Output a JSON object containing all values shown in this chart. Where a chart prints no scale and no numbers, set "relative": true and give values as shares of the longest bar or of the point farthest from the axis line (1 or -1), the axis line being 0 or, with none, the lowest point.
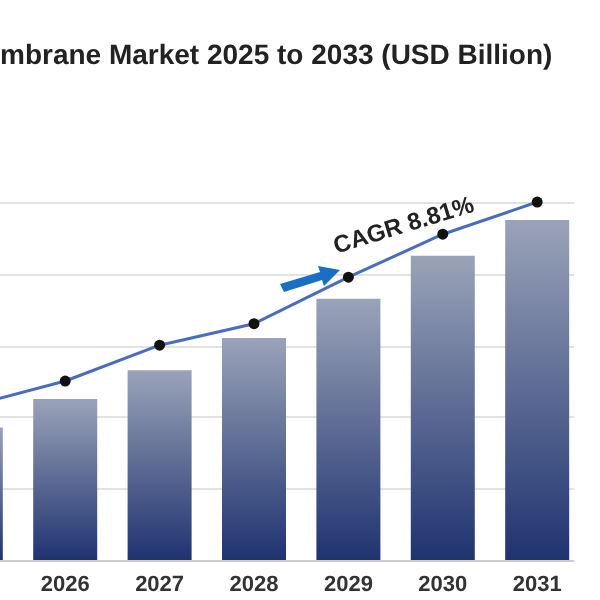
{
  "chart_data": {
    "type": "bar",
    "title": "mbrane Market 2025 to 2033 (USD Billion)",
    "relative": true,
    "categories": [
      null,
      "2026",
      "2027",
      "2028",
      "2029",
      "2030",
      "2031"
    ],
    "series": [
      {
        "color": "#1f3370",
        "values": [
          0.37,
          0.45,
          0.53,
          0.62,
          0.73,
          0.85,
          0.95
        ]
      },
      {
        "type": "line",
        "color": "#4a6cc0",
        "marker": "circle",
        "values": [
          0.43,
          0.5,
          0.6,
          0.66,
          0.79,
          0.91,
          1
        ]
      }
    ],
    "annotations": [
      "CAGR  8.81%"
    ],
    "grid": "y"
  }
}
